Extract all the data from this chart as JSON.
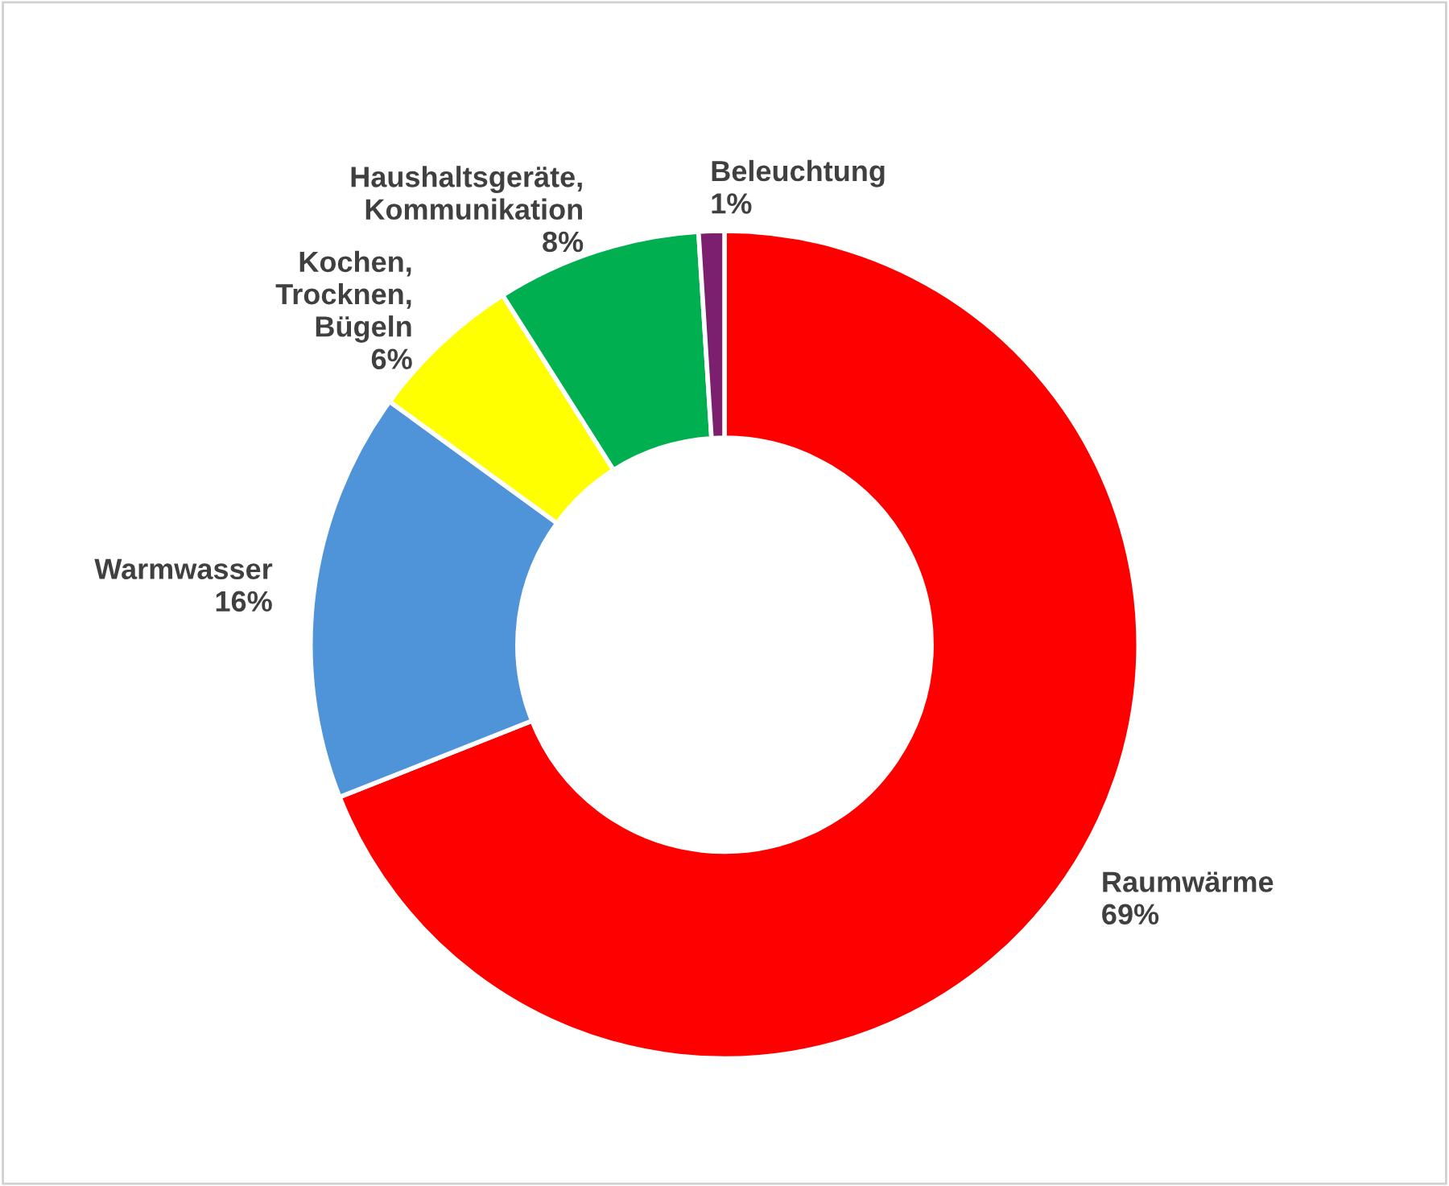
{
  "chart_data": {
    "type": "donut",
    "categories": [
      "Raumwärme",
      "Warmwasser",
      "Kochen,\nTrocknen,\nBügeln",
      "Haushaltsgeräte,\nKommunikation",
      "Beleuchtung"
    ],
    "values": [
      69,
      16,
      6,
      8,
      1
    ],
    "colors": [
      "#ff0000",
      "#4f94d9",
      "#ffff00",
      "#00b050",
      "#7b1f6e"
    ],
    "value_labels": [
      "69%",
      "16%",
      "6%",
      "8%",
      "1%"
    ],
    "legend": false
  }
}
